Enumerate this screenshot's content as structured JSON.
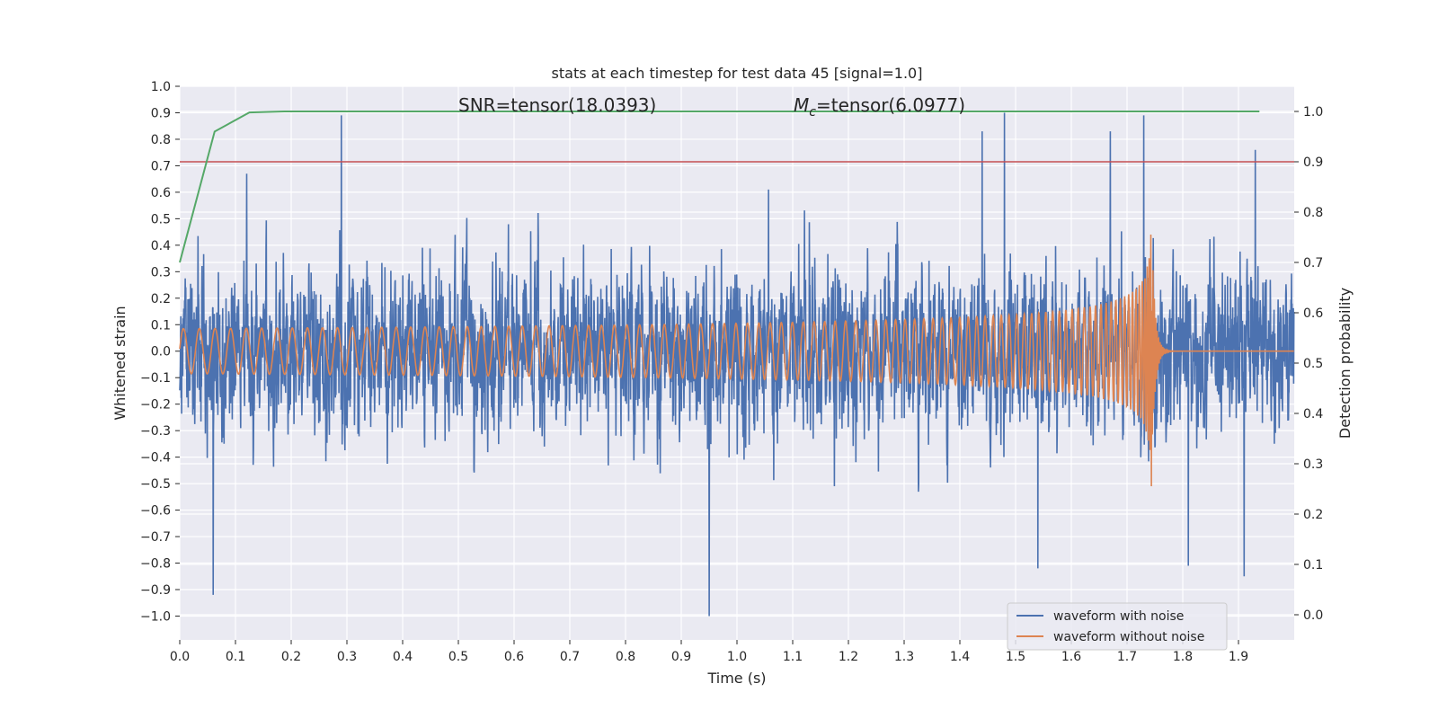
{
  "chart_data": {
    "type": "line",
    "title": "stats at each timestep for test data 45 [signal=1.0]",
    "xlabel": "Time (s)",
    "ylabel": "Whitened strain",
    "ylabel_right": "Detection probability",
    "xlim": [
      0.0,
      2.0
    ],
    "ylim": [
      -1.09,
      1.0
    ],
    "ylim_right": [
      -0.05,
      1.05
    ],
    "x_ticks": [
      "0.0",
      "0.1",
      "0.2",
      "0.3",
      "0.4",
      "0.5",
      "0.6",
      "0.7",
      "0.8",
      "0.9",
      "1.0",
      "1.1",
      "1.2",
      "1.3",
      "1.4",
      "1.5",
      "1.6",
      "1.7",
      "1.8",
      "1.9"
    ],
    "y_ticks": [
      "1.0",
      "0.9",
      "0.8",
      "0.7",
      "0.6",
      "0.5",
      "0.4",
      "0.3",
      "0.2",
      "0.1",
      "0.0",
      "−0.1",
      "−0.2",
      "−0.3",
      "−0.4",
      "−0.5",
      "−0.6",
      "−0.7",
      "−0.8",
      "−0.9",
      "−1.0"
    ],
    "y_right_ticks": [
      "1.0",
      "0.9",
      "0.8",
      "0.7",
      "0.6",
      "0.5",
      "0.4",
      "0.3",
      "0.2",
      "0.1",
      "0.0"
    ],
    "grid": true,
    "legend_position": "bottom-right",
    "annotations": {
      "snr": "SNR=tensor(18.0393)",
      "mc_symbol": "M",
      "mc_sub": "c",
      "mc_value": "=tensor(6.0977)"
    },
    "series": [
      {
        "name": "waveform with noise",
        "color": "#4c72b0",
        "axis": "left",
        "kind": "noise",
        "amplitude_std": 0.22,
        "peaks": [
          {
            "x": 0.06,
            "y": -0.92
          },
          {
            "x": 0.12,
            "y": 0.67
          },
          {
            "x": 0.29,
            "y": 0.89
          },
          {
            "x": 0.95,
            "y": -1.0
          },
          {
            "x": 1.44,
            "y": 0.83
          },
          {
            "x": 1.48,
            "y": 0.9
          },
          {
            "x": 1.54,
            "y": -0.82
          },
          {
            "x": 1.67,
            "y": 0.83
          },
          {
            "x": 1.73,
            "y": 0.89
          },
          {
            "x": 1.81,
            "y": -0.81
          },
          {
            "x": 1.91,
            "y": -0.85
          },
          {
            "x": 1.93,
            "y": 0.76
          }
        ]
      },
      {
        "name": "waveform without noise",
        "color": "#dd8452",
        "axis": "left",
        "kind": "chirp",
        "start_frequency_hz": 35,
        "merger_time": 1.745,
        "amplitude_start": 0.085,
        "amplitude_peak": 0.52
      },
      {
        "name": "",
        "color": "#55a868",
        "axis": "right",
        "kind": "probability",
        "x": [
          0.0,
          0.0625,
          0.125,
          0.1875,
          0.25,
          0.5,
          1.0,
          1.5,
          1.9375
        ],
        "y": [
          0.7,
          0.96,
          0.998,
          1.0,
          1.0,
          1.0,
          1.0,
          1.0,
          1.0
        ]
      },
      {
        "name": "",
        "color": "#c44e52",
        "axis": "right",
        "kind": "threshold",
        "y": 0.9
      }
    ]
  }
}
